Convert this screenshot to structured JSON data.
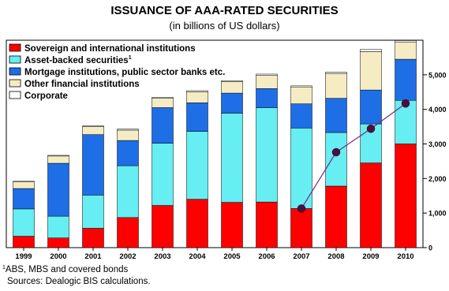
{
  "chart_data": {
    "type": "bar",
    "title": "ISSUANCE OF AAA-RATED SECURITIES",
    "subtitle": "(in billions of US dollars)",
    "categories": [
      "1999",
      "2000",
      "2001",
      "2002",
      "2003",
      "2004",
      "2005",
      "2006",
      "2007",
      "2008",
      "2009",
      "2010"
    ],
    "series": [
      {
        "name": "Sovereign and international institutions",
        "color": "#ff0000",
        "values": [
          330,
          280,
          560,
          870,
          1220,
          1400,
          1310,
          1320,
          1130,
          1780,
          2450,
          3000
        ]
      },
      {
        "name": "Asset-backed securities",
        "name_sup": "1",
        "color": "#66eef2",
        "values": [
          790,
          630,
          960,
          1500,
          1800,
          1960,
          2580,
          2730,
          2330,
          1550,
          1130,
          1260
        ]
      },
      {
        "name": "Mortgage institutions, public sector banks etc.",
        "color": "#1e6ee6",
        "values": [
          590,
          1530,
          1750,
          730,
          1030,
          830,
          580,
          550,
          700,
          990,
          980,
          1190
        ]
      },
      {
        "name": "Other financial institutions",
        "color": "#f5ecc4",
        "values": [
          190,
          210,
          230,
          300,
          270,
          320,
          330,
          390,
          490,
          720,
          1110,
          500
        ]
      },
      {
        "name": "Corporate",
        "color": "#ffffff",
        "values": [
          20,
          20,
          20,
          30,
          30,
          30,
          30,
          30,
          30,
          40,
          70,
          40
        ]
      }
    ],
    "line": {
      "start_index": 8,
      "values": [
        1130,
        2760,
        3440,
        4170
      ],
      "color": "#7a2a7a"
    },
    "ylim": [
      0,
      6000
    ],
    "yticks": [
      "0",
      "1,000",
      "2,000",
      "3,000",
      "4,000",
      "5,000"
    ],
    "ytick_values": [
      0,
      1000,
      2000,
      3000,
      4000,
      5000
    ],
    "legend_position": "top-left",
    "grid": false
  },
  "footnotes": {
    "note_marker": "1",
    "note_text": "ABS, MBS and covered bonds",
    "sources": "Sources: Dealogic BIS calculations."
  }
}
